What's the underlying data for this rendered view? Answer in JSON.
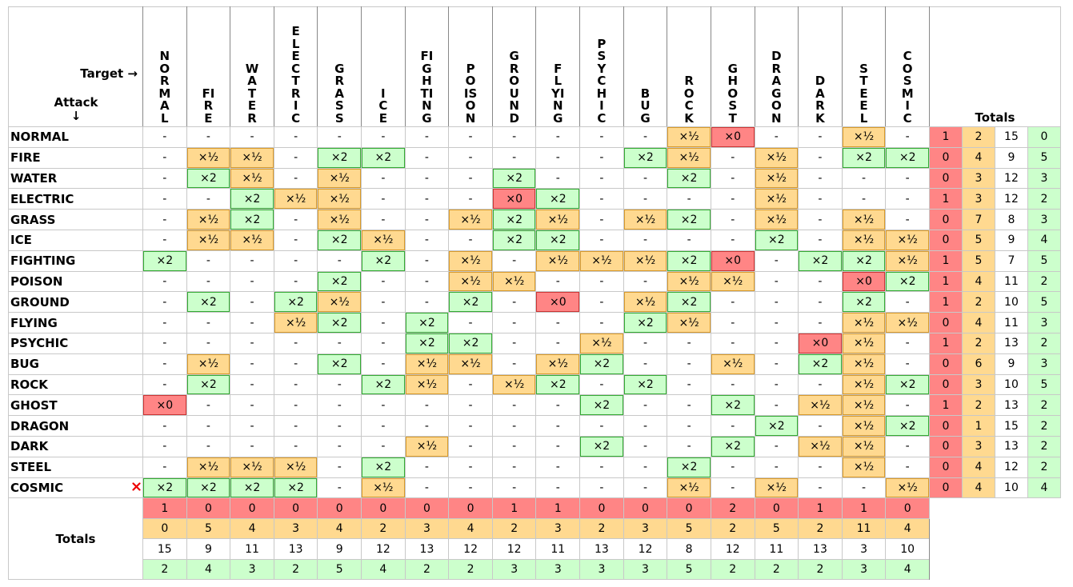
{
  "header": {
    "target_label": "Target →",
    "attack_label": "Attack ↓",
    "totals_label": "Totals",
    "columns": [
      "NORMAL",
      "FIRE",
      "WATER",
      "ELECTRIC",
      "GRASS",
      "ICE",
      "FIGHTING",
      "POISON",
      "GROUND",
      "FLYING",
      "PSYCHIC",
      "BUG",
      "ROCK",
      "GHOST",
      "DRAGON",
      "DARK",
      "STEEL",
      "COSMIC"
    ]
  },
  "rows": [
    {
      "label": "NORMAL",
      "cells": [
        "-",
        "-",
        "-",
        "-",
        "-",
        "-",
        "-",
        "-",
        "-",
        "-",
        "-",
        "-",
        "×½",
        "×0",
        "-",
        "-",
        "×½",
        "-"
      ],
      "totals": [
        1,
        2,
        15,
        0
      ]
    },
    {
      "label": "FIRE",
      "cells": [
        "-",
        "×½",
        "×½",
        "-",
        "×2",
        "×2",
        "-",
        "-",
        "-",
        "-",
        "-",
        "×2",
        "×½",
        "-",
        "×½",
        "-",
        "×2",
        "×2"
      ],
      "totals": [
        0,
        4,
        9,
        5
      ]
    },
    {
      "label": "WATER",
      "cells": [
        "-",
        "×2",
        "×½",
        "-",
        "×½",
        "-",
        "-",
        "-",
        "×2",
        "-",
        "-",
        "-",
        "×2",
        "-",
        "×½",
        "-",
        "-",
        "-"
      ],
      "totals": [
        0,
        3,
        12,
        3
      ]
    },
    {
      "label": "ELECTRIC",
      "cells": [
        "-",
        "-",
        "×2",
        "×½",
        "×½",
        "-",
        "-",
        "-",
        "×0",
        "×2",
        "-",
        "-",
        "-",
        "-",
        "×½",
        "-",
        "-",
        "-"
      ],
      "totals": [
        1,
        3,
        12,
        2
      ]
    },
    {
      "label": "GRASS",
      "cells": [
        "-",
        "×½",
        "×2",
        "-",
        "×½",
        "-",
        "-",
        "×½",
        "×2",
        "×½",
        "-",
        "×½",
        "×2",
        "-",
        "×½",
        "-",
        "×½",
        "-"
      ],
      "totals": [
        0,
        7,
        8,
        3
      ]
    },
    {
      "label": "ICE",
      "cells": [
        "-",
        "×½",
        "×½",
        "-",
        "×2",
        "×½",
        "-",
        "-",
        "×2",
        "×2",
        "-",
        "-",
        "-",
        "-",
        "×2",
        "-",
        "×½",
        "×½"
      ],
      "totals": [
        0,
        5,
        9,
        4
      ]
    },
    {
      "label": "FIGHTING",
      "cells": [
        "×2",
        "-",
        "-",
        "-",
        "-",
        "×2",
        "-",
        "×½",
        "-",
        "×½",
        "×½",
        "×½",
        "×2",
        "×0",
        "-",
        "×2",
        "×2",
        "×½"
      ],
      "totals": [
        1,
        5,
        7,
        5
      ]
    },
    {
      "label": "POISON",
      "cells": [
        "-",
        "-",
        "-",
        "-",
        "×2",
        "-",
        "-",
        "×½",
        "×½",
        "-",
        "-",
        "-",
        "×½",
        "×½",
        "-",
        "-",
        "×0",
        "×2"
      ],
      "totals": [
        1,
        4,
        11,
        2
      ]
    },
    {
      "label": "GROUND",
      "cells": [
        "-",
        "×2",
        "-",
        "×2",
        "×½",
        "-",
        "-",
        "×2",
        "-",
        "×0",
        "-",
        "×½",
        "×2",
        "-",
        "-",
        "-",
        "×2",
        "-"
      ],
      "totals": [
        1,
        2,
        10,
        5
      ]
    },
    {
      "label": "FLYING",
      "cells": [
        "-",
        "-",
        "-",
        "×½",
        "×2",
        "-",
        "×2",
        "-",
        "-",
        "-",
        "-",
        "×2",
        "×½",
        "-",
        "-",
        "-",
        "×½",
        "×½"
      ],
      "totals": [
        0,
        4,
        11,
        3
      ]
    },
    {
      "label": "PSYCHIC",
      "cells": [
        "-",
        "-",
        "-",
        "-",
        "-",
        "-",
        "×2",
        "×2",
        "-",
        "-",
        "×½",
        "-",
        "-",
        "-",
        "-",
        "×0",
        "×½",
        "-"
      ],
      "totals": [
        1,
        2,
        13,
        2
      ]
    },
    {
      "label": "BUG",
      "cells": [
        "-",
        "×½",
        "-",
        "-",
        "×2",
        "-",
        "×½",
        "×½",
        "-",
        "×½",
        "×2",
        "-",
        "-",
        "×½",
        "-",
        "×2",
        "×½",
        "-"
      ],
      "totals": [
        0,
        6,
        9,
        3
      ]
    },
    {
      "label": "ROCK",
      "cells": [
        "-",
        "×2",
        "-",
        "-",
        "-",
        "×2",
        "×½",
        "-",
        "×½",
        "×2",
        "-",
        "×2",
        "-",
        "-",
        "-",
        "-",
        "×½",
        "×2"
      ],
      "totals": [
        0,
        3,
        10,
        5
      ]
    },
    {
      "label": "GHOST",
      "cells": [
        "×0",
        "-",
        "-",
        "-",
        "-",
        "-",
        "-",
        "-",
        "-",
        "-",
        "×2",
        "-",
        "-",
        "×2",
        "-",
        "×½",
        "×½",
        "-"
      ],
      "totals": [
        1,
        2,
        13,
        2
      ]
    },
    {
      "label": "DRAGON",
      "cells": [
        "-",
        "-",
        "-",
        "-",
        "-",
        "-",
        "-",
        "-",
        "-",
        "-",
        "-",
        "-",
        "-",
        "-",
        "×2",
        "-",
        "×½",
        "×2"
      ],
      "totals": [
        0,
        1,
        15,
        2
      ]
    },
    {
      "label": "DARK",
      "cells": [
        "-",
        "-",
        "-",
        "-",
        "-",
        "-",
        "×½",
        "-",
        "-",
        "-",
        "×2",
        "-",
        "-",
        "×2",
        "-",
        "×½",
        "×½",
        "-"
      ],
      "totals": [
        0,
        3,
        13,
        2
      ]
    },
    {
      "label": "STEEL",
      "cells": [
        "-",
        "×½",
        "×½",
        "×½",
        "-",
        "×2",
        "-",
        "-",
        "-",
        "-",
        "-",
        "-",
        "×2",
        "-",
        "-",
        "-",
        "×½",
        "-"
      ],
      "totals": [
        0,
        4,
        12,
        2
      ]
    },
    {
      "label": "COSMIC",
      "cells": [
        "×2",
        "×2",
        "×2",
        "×2",
        "-",
        "×½",
        "-",
        "-",
        "-",
        "-",
        "-",
        "-",
        "×½",
        "-",
        "×½",
        "-",
        "-",
        "×½"
      ],
      "totals": [
        0,
        4,
        10,
        4
      ]
    }
  ],
  "column_totals": [
    [
      1,
      0,
      0,
      0,
      0,
      0,
      0,
      0,
      1,
      1,
      0,
      0,
      0,
      2,
      0,
      1,
      1,
      0
    ],
    [
      0,
      5,
      4,
      3,
      4,
      2,
      3,
      4,
      2,
      3,
      2,
      3,
      5,
      2,
      5,
      2,
      11,
      4
    ],
    [
      15,
      9,
      11,
      13,
      9,
      12,
      13,
      12,
      12,
      11,
      13,
      12,
      8,
      12,
      11,
      13,
      3,
      10
    ],
    [
      2,
      4,
      3,
      2,
      5,
      4,
      2,
      2,
      3,
      3,
      3,
      3,
      5,
      2,
      2,
      2,
      3,
      4
    ]
  ]
}
